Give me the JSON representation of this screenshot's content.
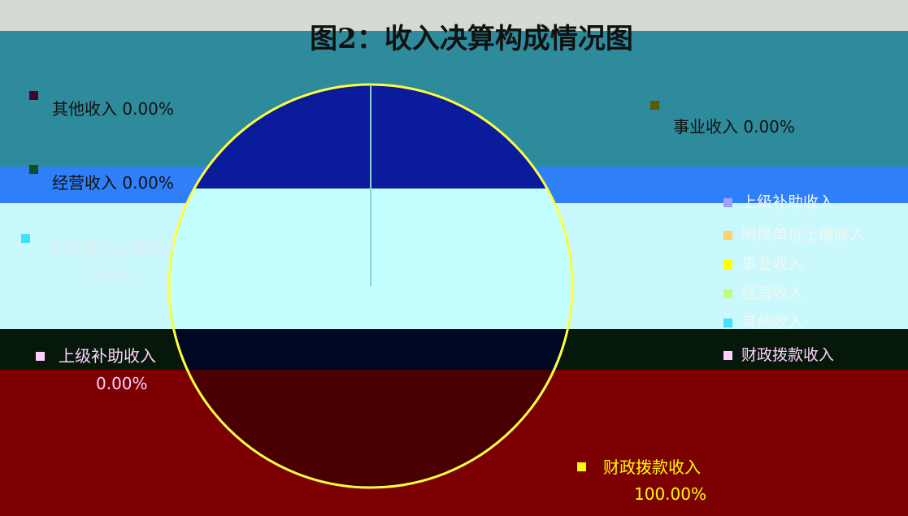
{
  "chart_data": {
    "type": "pie",
    "title": "图2：收入决算构成情况图",
    "slices": [
      {
        "label": "财政拨款收入",
        "value_pct": 100.0,
        "display": "100.00%",
        "color": "#FFFF00"
      },
      {
        "label": "上级补助收入",
        "value_pct": 0.0,
        "display": "0.00%",
        "color": "#FF00FF"
      },
      {
        "label": "事业收入",
        "value_pct": 0.0,
        "display": "0.00%",
        "color": "#808000"
      },
      {
        "label": "经营收入",
        "value_pct": 0.0,
        "display": "0.00%",
        "color": "#008000"
      },
      {
        "label": "附属单位上缴收入",
        "value_pct": 0.0,
        "display": "0.00%",
        "color": "#00FFFF"
      },
      {
        "label": "其他收入",
        "value_pct": 0.0,
        "display": "0.00%",
        "color": "#800080"
      }
    ],
    "legend_position": "right"
  },
  "legend": {
    "items": [
      "财政拨款收入",
      "上级补助收入",
      "事业收入",
      "经营收入",
      "附属单位上缴收入",
      "其他收入"
    ]
  },
  "colors": {
    "bands": [
      "#d3dbd3",
      "#2e8b9c",
      "#2f7ff9",
      "#c9f8fd",
      "#05180a",
      "#7c0000"
    ],
    "pie": [
      "#0a1c9c",
      "#c4ffff",
      "#4a0000"
    ]
  }
}
